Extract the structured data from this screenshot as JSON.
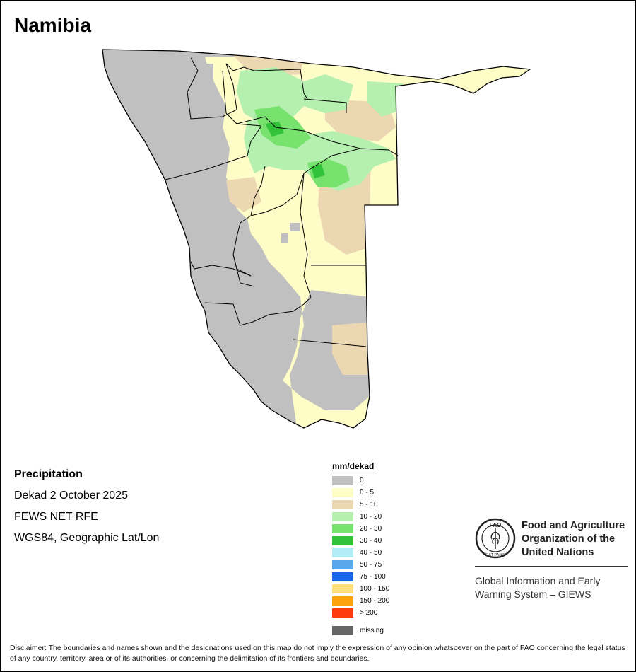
{
  "title": "Namibia",
  "info": {
    "heading": "Precipitation",
    "period": "Dekad 2 October 2025",
    "source": "FEWS NET RFE",
    "projection": "WGS84, Geographic Lat/Lon"
  },
  "legend": {
    "unit_label": "mm/dekad",
    "classes": [
      {
        "label": "0",
        "color": "#c0c0c0"
      },
      {
        "label": "0 - 5",
        "color": "#fefdc8"
      },
      {
        "label": "5 - 10",
        "color": "#ecd7b3"
      },
      {
        "label": "10 - 20",
        "color": "#b6f0b0"
      },
      {
        "label": "20 - 30",
        "color": "#78e26e"
      },
      {
        "label": "30 - 40",
        "color": "#33c33a"
      },
      {
        "label": "40 - 50",
        "color": "#b4ecf5"
      },
      {
        "label": "50 - 75",
        "color": "#5aa7ec"
      },
      {
        "label": "75 - 100",
        "color": "#1c64e8"
      },
      {
        "label": "100 - 150",
        "color": "#fde07a"
      },
      {
        "label": "150 - 200",
        "color": "#fca30e"
      },
      {
        "label": "> 200",
        "color": "#fd3b0c"
      }
    ],
    "missing": {
      "label": "missing",
      "color": "#666666"
    }
  },
  "org": {
    "logo_text": "FAO",
    "logo_motto": "FIAT PANIS",
    "name_lines": [
      "Food and Agriculture",
      "Organization of the",
      "United Nations"
    ],
    "giews_lines": [
      "Global Information and Early",
      "Warning System – GIEWS"
    ]
  },
  "disclaimer": "Disclaimer: The boundaries and names shown and the designations used on this map do not imply the expression of any opinion whatsoever on the part of FAO concerning the legal status of any country, territory, area or of its authorities, or concerning the delimitation of its frontiers and boundaries."
}
